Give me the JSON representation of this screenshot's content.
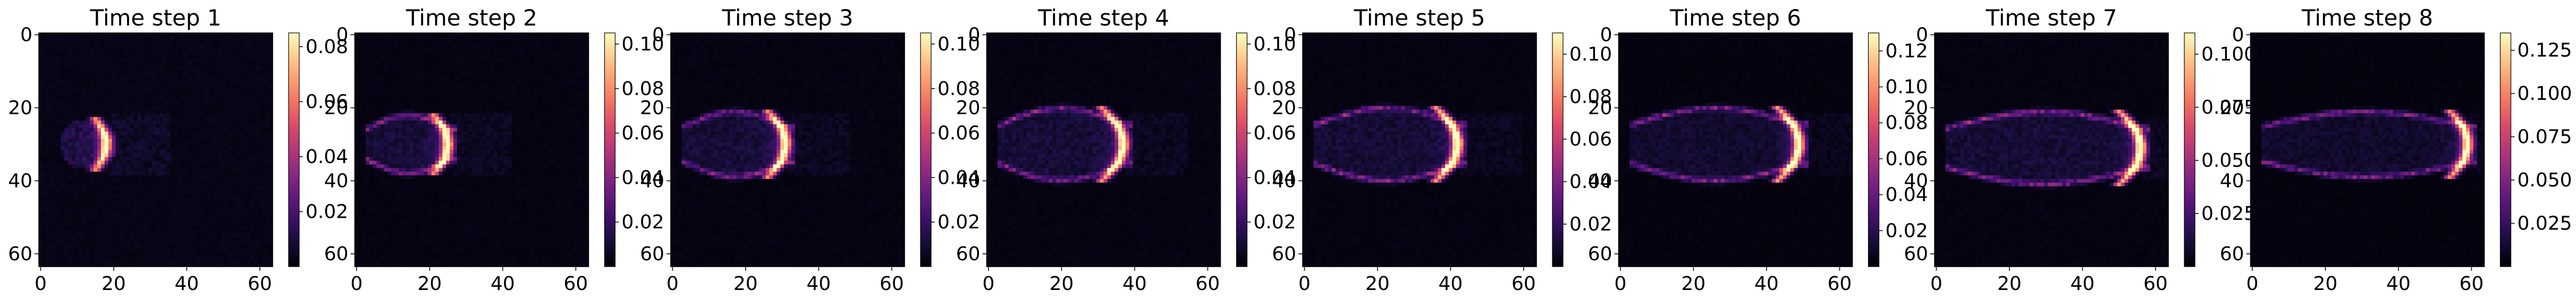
{
  "chart_data": [
    {
      "type": "heatmap",
      "title": "Time step 1",
      "colormap": "magma",
      "grid_size": 64,
      "xticks": [
        "0",
        "20",
        "40",
        "60"
      ],
      "yticks": [
        "0",
        "20",
        "40",
        "60"
      ],
      "colorbar_ticks": [
        "0.02",
        "0.04",
        "0.06",
        "0.08"
      ],
      "colorbar_range": [
        0,
        0.085
      ],
      "feature": {
        "front_x": 18,
        "front_y": 30,
        "front_height": 7,
        "max_value": 0.08,
        "left_edge": 6
      }
    },
    {
      "type": "heatmap",
      "title": "Time step 2",
      "colormap": "magma",
      "grid_size": 64,
      "xticks": [
        "0",
        "20",
        "40",
        "60"
      ],
      "yticks": [
        "0",
        "20",
        "40",
        "60"
      ],
      "colorbar_ticks": [
        "0.02",
        "0.04",
        "0.06",
        "0.08",
        "0.10"
      ],
      "colorbar_range": [
        0,
        0.105
      ],
      "feature": {
        "front_x": 25,
        "front_y": 30,
        "front_height": 8,
        "max_value": 0.1,
        "left_edge": 3
      }
    },
    {
      "type": "heatmap",
      "title": "Time step 3",
      "colormap": "magma",
      "grid_size": 64,
      "xticks": [
        "0",
        "20",
        "40",
        "60"
      ],
      "yticks": [
        "0",
        "20",
        "40",
        "60"
      ],
      "colorbar_ticks": [
        "0.02",
        "0.04",
        "0.06",
        "0.08",
        "0.10"
      ],
      "colorbar_range": [
        0,
        0.105
      ],
      "feature": {
        "front_x": 31,
        "front_y": 30,
        "front_height": 9,
        "max_value": 0.1,
        "left_edge": 3
      }
    },
    {
      "type": "heatmap",
      "title": "Time step 4",
      "colormap": "magma",
      "grid_size": 64,
      "xticks": [
        "0",
        "20",
        "40",
        "60"
      ],
      "yticks": [
        "0",
        "20",
        "40",
        "60"
      ],
      "colorbar_ticks": [
        "0.02",
        "0.04",
        "0.06",
        "0.08",
        "0.10"
      ],
      "colorbar_range": [
        0,
        0.105
      ],
      "feature": {
        "front_x": 37,
        "front_y": 30,
        "front_height": 10,
        "max_value": 0.1,
        "left_edge": 3
      }
    },
    {
      "type": "heatmap",
      "title": "Time step 5",
      "colormap": "magma",
      "grid_size": 64,
      "xticks": [
        "0",
        "20",
        "40",
        "60"
      ],
      "yticks": [
        "0",
        "20",
        "40",
        "60"
      ],
      "colorbar_ticks": [
        "0.02",
        "0.04",
        "0.06",
        "0.08",
        "0.10"
      ],
      "colorbar_range": [
        0,
        0.11
      ],
      "feature": {
        "front_x": 42,
        "front_y": 30,
        "front_height": 10,
        "max_value": 0.11,
        "left_edge": 3
      }
    },
    {
      "type": "heatmap",
      "title": "Time step 6",
      "colormap": "magma",
      "grid_size": 64,
      "xticks": [
        "0",
        "20",
        "40",
        "60"
      ],
      "yticks": [
        "0",
        "20",
        "40",
        "60"
      ],
      "colorbar_ticks": [
        "0.02",
        "0.04",
        "0.06",
        "0.08",
        "0.10",
        "0.12"
      ],
      "colorbar_range": [
        0,
        0.13
      ],
      "feature": {
        "front_x": 49,
        "front_y": 30,
        "front_height": 10,
        "max_value": 0.13,
        "left_edge": 3
      }
    },
    {
      "type": "heatmap",
      "title": "Time step 7",
      "colormap": "magma",
      "grid_size": 64,
      "xticks": [
        "0",
        "20",
        "40",
        "60"
      ],
      "yticks": [
        "0",
        "20",
        "40",
        "60"
      ],
      "colorbar_ticks": [
        "0.025",
        "0.050",
        "0.075",
        "0.100"
      ],
      "colorbar_range": [
        0,
        0.11
      ],
      "feature": {
        "front_x": 56,
        "front_y": 31,
        "front_height": 10,
        "max_value": 0.11,
        "left_edge": 3
      }
    },
    {
      "type": "heatmap",
      "title": "Time step 8",
      "colormap": "magma",
      "grid_size": 64,
      "xticks": [
        "0",
        "20",
        "40",
        "60"
      ],
      "yticks": [
        "0",
        "20",
        "40",
        "60"
      ],
      "colorbar_ticks": [
        "0.025",
        "0.050",
        "0.075",
        "0.100",
        "0.125"
      ],
      "colorbar_range": [
        0,
        0.135
      ],
      "feature": {
        "front_x": 59,
        "front_y": 30,
        "front_height": 9,
        "max_value": 0.13,
        "left_edge": 3
      }
    }
  ]
}
